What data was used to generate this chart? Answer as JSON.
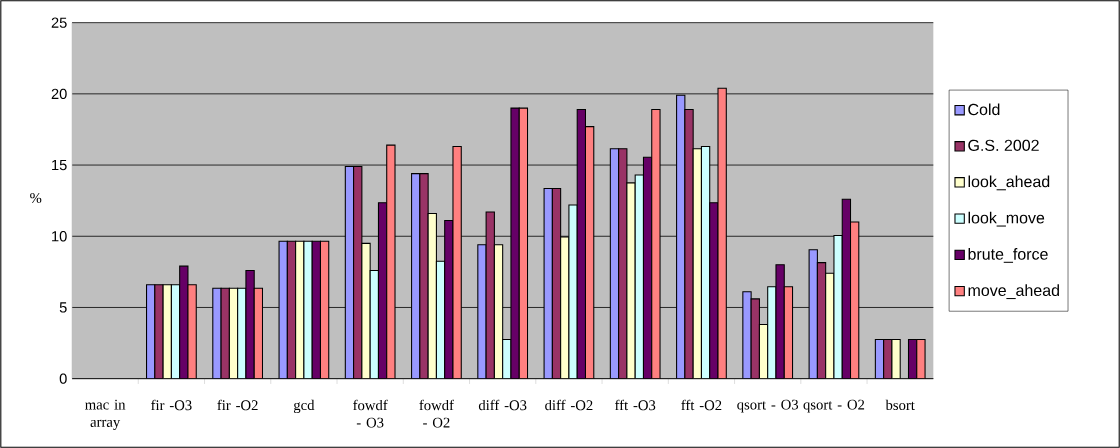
{
  "chart_data": {
    "type": "bar",
    "ylabel": "%",
    "categories": [
      "mac in array",
      "fir -O3",
      "fir -O2",
      "gcd",
      "fowdf - O3",
      "fowdf - O2",
      "diff -O3",
      "diff -O2",
      "fft -O3",
      "fft -O2",
      "qsort - O3",
      "qsort - O2",
      "bsort"
    ],
    "series": [
      {
        "name": "Cold",
        "color": "#9999ff",
        "values": [
          null,
          6.6,
          6.35,
          9.65,
          14.9,
          14.4,
          9.4,
          13.35,
          16.15,
          19.9,
          6.1,
          9.05,
          2.75
        ]
      },
      {
        "name": "G.S. 2002",
        "color": "#993366",
        "values": [
          null,
          6.6,
          6.35,
          9.65,
          14.9,
          14.4,
          11.7,
          13.35,
          16.15,
          18.9,
          5.6,
          8.15,
          2.75
        ]
      },
      {
        "name": "look_ahead",
        "color": "#ffffcc",
        "values": [
          null,
          6.6,
          6.35,
          9.65,
          9.5,
          11.6,
          9.4,
          9.95,
          13.75,
          16.15,
          3.8,
          7.4,
          2.75
        ]
      },
      {
        "name": "look_move",
        "color": "#ccffff",
        "values": [
          null,
          6.6,
          6.35,
          9.65,
          7.6,
          8.25,
          2.75,
          12.2,
          14.3,
          16.3,
          6.45,
          10.05,
          null
        ]
      },
      {
        "name": "brute_force",
        "color": "#660066",
        "values": [
          null,
          7.9,
          7.6,
          9.65,
          12.35,
          11.1,
          19.0,
          18.9,
          15.55,
          12.35,
          8.0,
          12.6,
          2.75
        ]
      },
      {
        "name": "move_ahead",
        "color": "#ff8080",
        "values": [
          null,
          6.6,
          6.35,
          9.65,
          16.4,
          16.3,
          19.0,
          17.7,
          18.9,
          20.4,
          6.45,
          11.0,
          2.75
        ]
      }
    ],
    "ylim": [
      0,
      25
    ],
    "yticks": [
      0,
      5,
      10,
      15,
      20,
      25
    ],
    "grid": "y",
    "legend": "right"
  }
}
